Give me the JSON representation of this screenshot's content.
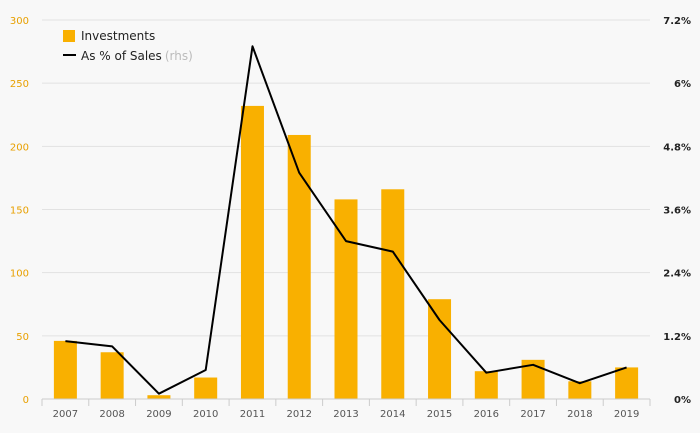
{
  "chart_data": {
    "type": "bar",
    "categories": [
      "2007",
      "2008",
      "2009",
      "2010",
      "2011",
      "2012",
      "2013",
      "2014",
      "2015",
      "2016",
      "2017",
      "2018",
      "2019"
    ],
    "series": [
      {
        "name": "Investments",
        "type": "bar",
        "axis": "left",
        "color": "#f9b000",
        "values": [
          46,
          37,
          3,
          17,
          232,
          209,
          158,
          166,
          79,
          22,
          31,
          14,
          25
        ]
      },
      {
        "name": "As % of Sales",
        "name_suffix": "(rhs)",
        "type": "line",
        "axis": "right",
        "color": "#000000",
        "values": [
          1.1,
          1.0,
          0.1,
          0.55,
          6.7,
          4.3,
          3.0,
          2.8,
          1.5,
          0.5,
          0.65,
          0.3,
          0.6
        ]
      }
    ],
    "y_left": {
      "ylim": [
        0,
        300
      ],
      "ticks": [
        "0",
        "50",
        "100",
        "150",
        "200",
        "250",
        "300"
      ],
      "tick_color": "#e8a000"
    },
    "y_right": {
      "ylim": [
        0,
        7.2
      ],
      "ticks": [
        "0%",
        "1.2%",
        "2.4%",
        "3.6%",
        "4.8%",
        "6%",
        "7.2%"
      ]
    },
    "grid": true,
    "legend_position": "top-left",
    "title": "",
    "xlabel": "",
    "ylabel": ""
  }
}
